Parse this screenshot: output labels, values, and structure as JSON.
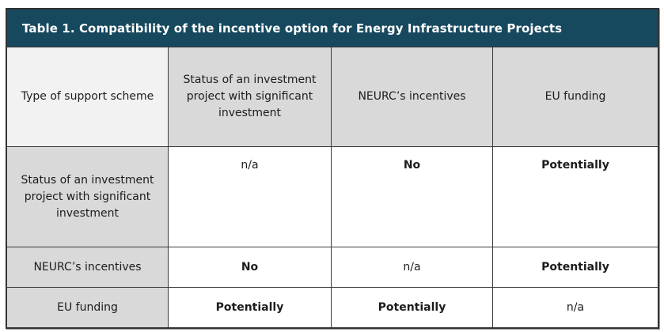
{
  "table": {
    "title": "Table 1. Compatibility of the incentive option for Energy Infrastructure Projects",
    "columns": [
      "Type of support scheme",
      "Status of an investment project with significant investment",
      "NEURC’s incentives",
      "EU funding"
    ],
    "rows": [
      {
        "header": "Status of an investment project with significant investment",
        "cells": [
          {
            "text": "n/a",
            "bold": false
          },
          {
            "text": "No",
            "bold": true
          },
          {
            "text": "Potentially",
            "bold": true
          }
        ]
      },
      {
        "header": "NEURC’s incentives",
        "cells": [
          {
            "text": "No",
            "bold": true
          },
          {
            "text": "n/a",
            "bold": false
          },
          {
            "text": "Potentially",
            "bold": true
          }
        ]
      },
      {
        "header": "EU funding",
        "cells": [
          {
            "text": "Potentially",
            "bold": true
          },
          {
            "text": "Potentially",
            "bold": true
          },
          {
            "text": "n/a",
            "bold": false
          }
        ]
      }
    ],
    "colors": {
      "title_bar_bg": "#17495e",
      "title_text": "#ffffff",
      "corner_cell_bg": "#f2f2f2",
      "header_cell_bg": "#d9d9d9",
      "data_cell_bg": "#ffffff",
      "border": "#3b3b3b"
    }
  }
}
